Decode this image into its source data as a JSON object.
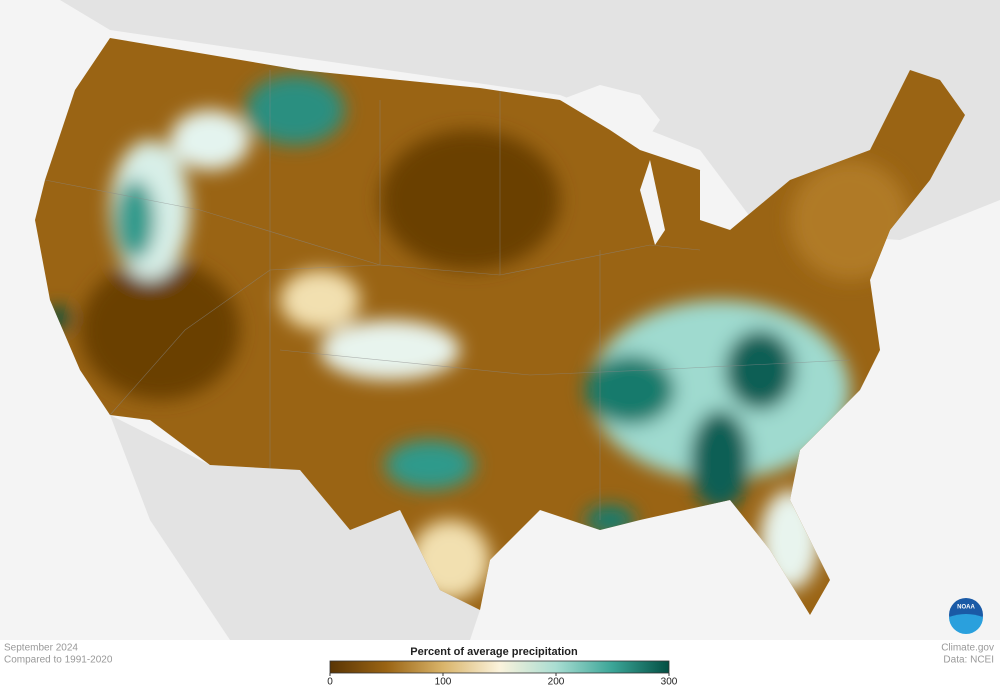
{
  "caption": {
    "date": "September 2024",
    "baseline": "Compared to 1991-2020"
  },
  "credit": {
    "site": "Climate.gov",
    "source": "Data: NCEI"
  },
  "logo": "NOAA",
  "legend": {
    "title": "Percent of average precipitation",
    "range": [
      0,
      300
    ],
    "ticks": [
      0,
      100,
      200,
      300
    ],
    "colors": [
      "#5a3504",
      "#9a6414",
      "#d9b46a",
      "#fbf3dc",
      "#a9ddd2",
      "#3ba597",
      "#034f43"
    ]
  }
}
